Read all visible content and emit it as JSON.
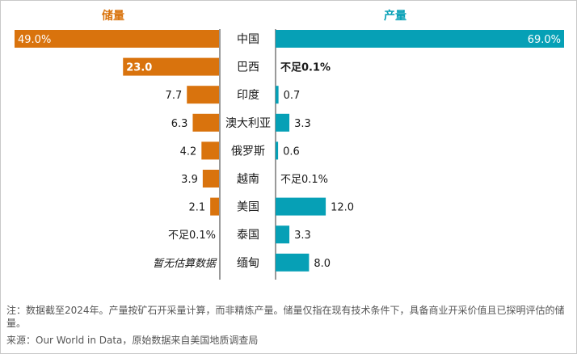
{
  "chart_data": {
    "type": "bar",
    "reserves_label": "储量",
    "production_label": "产量",
    "reserves_color": "#d9730d",
    "production_color": "#06a0b6",
    "categories": [
      "中国",
      "巴西",
      "印度",
      "澳大利亚",
      "俄罗斯",
      "越南",
      "美国",
      "泰国",
      "缅甸"
    ],
    "reserves": {
      "values": [
        49.0,
        23.0,
        7.7,
        6.3,
        4.2,
        3.9,
        2.1,
        null,
        null
      ],
      "labels": [
        "49.0%",
        "23.0",
        "7.7",
        "6.3",
        "4.2",
        "3.9",
        "2.1",
        "不足0.1%",
        "暂无估算数据"
      ]
    },
    "production": {
      "values": [
        69.0,
        null,
        0.7,
        3.3,
        0.6,
        null,
        12.0,
        3.3,
        8.0
      ],
      "labels": [
        "69.0%",
        "不足0.1%",
        "0.7",
        "3.3",
        "0.6",
        "不足0.1%",
        "12.0",
        "3.3",
        "8.0"
      ]
    }
  },
  "footnote": "注：数据截至2024年。产量按矿石开采量计算，而非精炼产量。储量仅指在现有技术条件下，具备商业开采价值且已探明评估的储量。",
  "source": "来源：Our World in Data，原始数据来自美国地质调查局"
}
